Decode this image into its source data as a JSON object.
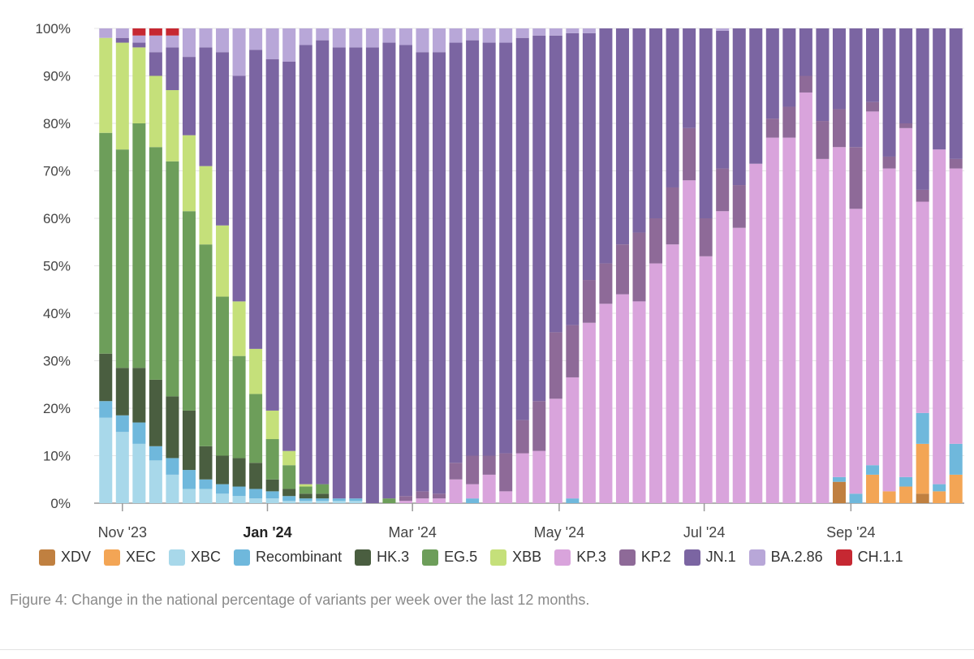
{
  "chart_data": {
    "type": "stacked_bar",
    "normalized_percent": true,
    "ylim": [
      0,
      100
    ],
    "y_ticks": [
      "0%",
      "10%",
      "20%",
      "30%",
      "40%",
      "50%",
      "60%",
      "70%",
      "80%",
      "90%",
      "100%"
    ],
    "x_ticks": [
      {
        "label": "Nov '23",
        "at_bar": 1,
        "bold": false
      },
      {
        "label": "Jan '24",
        "at_bar": 9.7,
        "bold": true
      },
      {
        "label": "Mar '24",
        "at_bar": 18.4,
        "bold": false
      },
      {
        "label": "May '24",
        "at_bar": 27.2,
        "bold": false
      },
      {
        "label": "Jul '24",
        "at_bar": 35.9,
        "bold": false
      },
      {
        "label": "Sep '24",
        "at_bar": 44.7,
        "bold": false
      }
    ],
    "series_order_bottom_to_top": [
      "XDV",
      "XEC",
      "XBC",
      "Recombinant",
      "HK.3",
      "EG.5",
      "XBB",
      "KP.3",
      "KP.2",
      "JN.1",
      "BA.2.86",
      "CH.1.1"
    ],
    "colors": {
      "XDV": "#c08040",
      "XEC": "#f3a555",
      "XBC": "#a8d8ea",
      "Recombinant": "#6fb8dc",
      "HK.3": "#4a5e40",
      "EG.5": "#6d9e5a",
      "XBB": "#c5e07a",
      "KP.3": "#d9a4dc",
      "KP.2": "#8e6a98",
      "JN.1": "#7b65a2",
      "BA.2.86": "#b8a7d8",
      "CH.1.1": "#c62832"
    },
    "bars": [
      {
        "XBC": 18,
        "Recombinant": 3.5,
        "HK.3": 10,
        "EG.5": 46.5,
        "XBB": 20,
        "KP.3": 0,
        "KP.2": 0,
        "JN.1": 0,
        "BA.2.86": 2,
        "CH.1.1": 0
      },
      {
        "XBC": 15,
        "Recombinant": 3.5,
        "HK.3": 10,
        "EG.5": 46,
        "XBB": 22.5,
        "JN.1": 1,
        "BA.2.86": 2
      },
      {
        "XBC": 12.5,
        "Recombinant": 4.5,
        "HK.3": 11.5,
        "EG.5": 51.5,
        "XBB": 16,
        "JN.1": 1,
        "BA.2.86": 1.5,
        "CH.1.1": 1.5
      },
      {
        "XBC": 9,
        "Recombinant": 3,
        "HK.3": 14,
        "EG.5": 49,
        "XBB": 15,
        "JN.1": 5,
        "BA.2.86": 3.5,
        "CH.1.1": 1.5
      },
      {
        "XBC": 6,
        "Recombinant": 3.5,
        "HK.3": 13,
        "EG.5": 49.5,
        "XBB": 15,
        "JN.1": 9,
        "BA.2.86": 2.5,
        "CH.1.1": 1.5
      },
      {
        "XBC": 3,
        "Recombinant": 4,
        "HK.3": 12.5,
        "EG.5": 42,
        "XBB": 16,
        "JN.1": 16.5,
        "BA.2.86": 6
      },
      {
        "XBC": 3,
        "Recombinant": 2,
        "HK.3": 7,
        "EG.5": 42.5,
        "XBB": 16.5,
        "JN.1": 25,
        "BA.2.86": 4
      },
      {
        "XBC": 2,
        "Recombinant": 2,
        "HK.3": 6,
        "EG.5": 33.5,
        "XBB": 15,
        "JN.1": 36.5,
        "BA.2.86": 5
      },
      {
        "XBC": 1.5,
        "Recombinant": 2,
        "HK.3": 6,
        "EG.5": 21.5,
        "XBB": 11.5,
        "JN.1": 47.5,
        "BA.2.86": 10
      },
      {
        "XBC": 1,
        "Recombinant": 2,
        "HK.3": 5.5,
        "EG.5": 14.5,
        "XBB": 9.5,
        "JN.1": 63,
        "BA.2.86": 4.5
      },
      {
        "XBC": 1,
        "Recombinant": 1.5,
        "HK.3": 2.5,
        "EG.5": 8.5,
        "XBB": 6,
        "JN.1": 74,
        "BA.2.86": 6.5
      },
      {
        "XBC": 0.5,
        "Recombinant": 1,
        "HK.3": 1.5,
        "EG.5": 5,
        "XBB": 3,
        "JN.1": 82,
        "BA.2.86": 7
      },
      {
        "XBC": 0.5,
        "Recombinant": 0.5,
        "HK.3": 1,
        "EG.5": 1.5,
        "XBB": 0.5,
        "JN.1": 92.5,
        "BA.2.86": 3.5
      },
      {
        "XBC": 0.5,
        "Recombinant": 0.5,
        "HK.3": 1,
        "EG.5": 2,
        "JN.1": 93.5,
        "BA.2.86": 2.5
      },
      {
        "XBC": 0.5,
        "Recombinant": 0.5,
        "JN.1": 95,
        "BA.2.86": 4
      },
      {
        "XBC": 0.5,
        "Recombinant": 0.5,
        "JN.1": 95,
        "BA.2.86": 4
      },
      {
        "JN.1": 96,
        "BA.2.86": 4
      },
      {
        "EG.5": 1,
        "JN.1": 96,
        "BA.2.86": 3
      },
      {
        "KP.3": 0.5,
        "KP.2": 1,
        "JN.1": 95,
        "BA.2.86": 3.5
      },
      {
        "KP.3": 1,
        "KP.2": 1.5,
        "JN.1": 92.5,
        "BA.2.86": 5
      },
      {
        "KP.3": 1,
        "KP.2": 1,
        "JN.1": 93,
        "BA.2.86": 5
      },
      {
        "KP.3": 5,
        "KP.2": 3.5,
        "JN.1": 88.5,
        "BA.2.86": 3
      },
      {
        "Recombinant": 1,
        "KP.3": 3,
        "KP.2": 6,
        "JN.1": 87.5,
        "BA.2.86": 2.5
      },
      {
        "KP.3": 6,
        "KP.2": 4,
        "JN.1": 87,
        "BA.2.86": 3
      },
      {
        "KP.3": 2.5,
        "KP.2": 8,
        "JN.1": 86.5,
        "BA.2.86": 3
      },
      {
        "KP.3": 10.5,
        "KP.2": 7,
        "JN.1": 80.5,
        "BA.2.86": 2
      },
      {
        "KP.3": 11,
        "KP.2": 10.5,
        "JN.1": 77,
        "BA.2.86": 1.5
      },
      {
        "KP.3": 22,
        "KP.2": 14,
        "JN.1": 62.5,
        "BA.2.86": 1.5
      },
      {
        "Recombinant": 1,
        "KP.3": 25.5,
        "KP.2": 11,
        "JN.1": 61.5,
        "BA.2.86": 1
      },
      {
        "KP.3": 38,
        "KP.2": 9,
        "JN.1": 52,
        "BA.2.86": 1
      },
      {
        "KP.3": 42,
        "KP.2": 8.5,
        "JN.1": 49.5
      },
      {
        "KP.3": 44,
        "KP.2": 10.5,
        "JN.1": 45.5
      },
      {
        "KP.3": 42.5,
        "KP.2": 14.5,
        "JN.1": 43
      },
      {
        "KP.3": 50.5,
        "KP.2": 9.5,
        "JN.1": 40
      },
      {
        "KP.3": 54.5,
        "KP.2": 12,
        "JN.1": 33.5
      },
      {
        "KP.3": 68,
        "KP.2": 11,
        "JN.1": 21
      },
      {
        "KP.3": 52,
        "KP.2": 8,
        "JN.1": 40
      },
      {
        "KP.3": 61.5,
        "KP.2": 9,
        "JN.1": 29,
        "BA.2.86": 0.5
      },
      {
        "KP.3": 58,
        "KP.2": 9,
        "JN.1": 33
      },
      {
        "KP.3": 71.5,
        "JN.1": 28.5
      },
      {
        "KP.3": 77,
        "KP.2": 4,
        "JN.1": 19
      },
      {
        "KP.3": 77,
        "KP.2": 6.5,
        "JN.1": 16.5
      },
      {
        "KP.3": 86.5,
        "KP.2": 3.5,
        "JN.1": 10
      },
      {
        "KP.3": 72.5,
        "KP.2": 8,
        "JN.1": 19.5
      },
      {
        "XDV": 4.5,
        "Recombinant": 1,
        "KP.3": 69.5,
        "KP.2": 8,
        "JN.1": 17
      },
      {
        "Recombinant": 2,
        "KP.3": 60,
        "KP.2": 13,
        "JN.1": 25
      },
      {
        "XEC": 6,
        "Recombinant": 2,
        "KP.3": 74.5,
        "KP.2": 2,
        "JN.1": 15.5
      },
      {
        "XEC": 2.5,
        "KP.3": 68,
        "KP.2": 2.5,
        "JN.1": 27
      },
      {
        "XEC": 3.5,
        "Recombinant": 2,
        "KP.3": 73.5,
        "KP.2": 1,
        "JN.1": 20
      },
      {
        "XDV": 2,
        "XEC": 10.5,
        "Recombinant": 6.5,
        "KP.3": 44.5,
        "KP.2": 2.5,
        "JN.1": 34
      },
      {
        "XEC": 2.5,
        "Recombinant": 1.5,
        "KP.3": 70.5,
        "JN.1": 25.5
      },
      {
        "XEC": 6,
        "Recombinant": 6.5,
        "KP.3": 58,
        "KP.2": 2,
        "JN.1": 27.5
      }
    ]
  },
  "legend": [
    {
      "label": "XDV",
      "series": "XDV"
    },
    {
      "label": "XEC",
      "series": "XEC"
    },
    {
      "label": "XBC",
      "series": "XBC"
    },
    {
      "label": "Recombinant",
      "series": "Recombinant"
    },
    {
      "label": "HK.3",
      "series": "HK.3"
    },
    {
      "label": "EG.5",
      "series": "EG.5"
    },
    {
      "label": "XBB",
      "series": "XBB"
    },
    {
      "label": "KP.3",
      "series": "KP.3"
    },
    {
      "label": "KP.2",
      "series": "KP.2"
    },
    {
      "label": "JN.1",
      "series": "JN.1"
    },
    {
      "label": "BA.2.86",
      "series": "BA.2.86"
    },
    {
      "label": "CH.1.1",
      "series": "CH.1.1"
    }
  ],
  "caption": "Figure 4: Change in the national percentage of variants per week over the last 12 months."
}
